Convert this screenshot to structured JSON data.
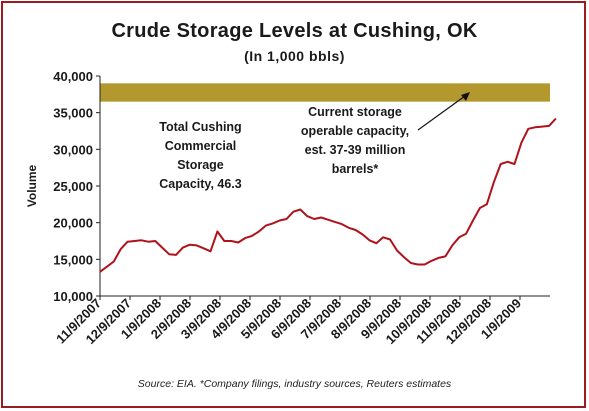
{
  "title": "Crude Storage Levels at Cushing, OK",
  "subtitle": "(In 1,000 bbls)",
  "source": "Source: EIA. *Company filings, industry sources, Reuters estimates",
  "annotations": {
    "left": [
      "Total Cushing",
      "Commercial",
      "Storage",
      "Capacity, 46.3"
    ],
    "right": [
      "Current storage",
      "operable capacity,",
      "est. 37-39 million",
      "barrels*"
    ]
  },
  "colors": {
    "border": "#9b1c20",
    "line": "#b0121b",
    "band": "#b3992d"
  },
  "chart_data": {
    "type": "line",
    "ylabel": "Volume",
    "ylim": [
      10000,
      40000
    ],
    "yticks": [
      "10,000",
      "15,000",
      "20,000",
      "25,000",
      "30,000",
      "35,000",
      "40,000"
    ],
    "xticks": [
      "11/9/2007",
      "12/9/2007",
      "1/9/2008",
      "2/9/2008",
      "3/9/2008",
      "4/9/2008",
      "5/9/2008",
      "6/9/2008",
      "7/9/2008",
      "8/9/2008",
      "9/9/2008",
      "10/9/2008",
      "11/9/2008",
      "12/9/2008",
      "1/9/2009"
    ],
    "band": {
      "from": 36500,
      "to": 39000
    },
    "series": [
      {
        "x": [
          "11/9/2007",
          "11/16/2007",
          "11/23/2007",
          "11/30/2007",
          "12/7/2007",
          "12/14/2007",
          "12/21/2007",
          "12/28/2007",
          "1/4/2008",
          "1/11/2008",
          "1/18/2008",
          "1/25/2008",
          "2/1/2008",
          "2/8/2008",
          "2/15/2008",
          "2/22/2008",
          "2/29/2008",
          "3/7/2008",
          "3/14/2008",
          "3/21/2008",
          "3/28/2008",
          "4/4/2008",
          "4/11/2008",
          "4/18/2008",
          "4/25/2008",
          "5/2/2008",
          "5/9/2008",
          "5/16/2008",
          "5/23/2008",
          "5/30/2008",
          "6/6/2008",
          "6/13/2008",
          "6/20/2008",
          "6/27/2008",
          "7/4/2008",
          "7/11/2008",
          "7/18/2008",
          "7/25/2008",
          "8/1/2008",
          "8/8/2008",
          "8/15/2008",
          "8/22/2008",
          "8/29/2008",
          "9/5/2008",
          "9/12/2008",
          "9/19/2008",
          "9/26/2008",
          "10/3/2008",
          "10/10/2008",
          "10/17/2008",
          "10/24/2008",
          "10/31/2008",
          "11/7/2008",
          "11/14/2008",
          "11/21/2008",
          "11/28/2008",
          "12/5/2008",
          "12/12/2008",
          "12/19/2008",
          "12/26/2008",
          "1/2/2009",
          "1/9/2009",
          "1/16/2009",
          "1/23/2009",
          "1/30/2009",
          "2/6/2009",
          "2/13/2009"
        ],
        "values": [
          13300,
          14000,
          14700,
          16400,
          17400,
          17500,
          17600,
          17400,
          17500,
          16600,
          15700,
          15600,
          16600,
          17000,
          16900,
          16500,
          16100,
          18800,
          17500,
          17500,
          17300,
          17900,
          18200,
          18800,
          19600,
          19900,
          20300,
          20500,
          21500,
          21800,
          20900,
          20500,
          20700,
          20400,
          20100,
          19800,
          19300,
          19000,
          18400,
          17600,
          17200,
          18000,
          17700,
          16200,
          15300,
          14500,
          14300,
          14300,
          14800,
          15200,
          15400,
          16900,
          18000,
          18500,
          20300,
          22000,
          22500,
          25500,
          28000,
          28300,
          28000,
          30900,
          32800,
          33000,
          33100,
          33200,
          34200
        ]
      }
    ]
  }
}
